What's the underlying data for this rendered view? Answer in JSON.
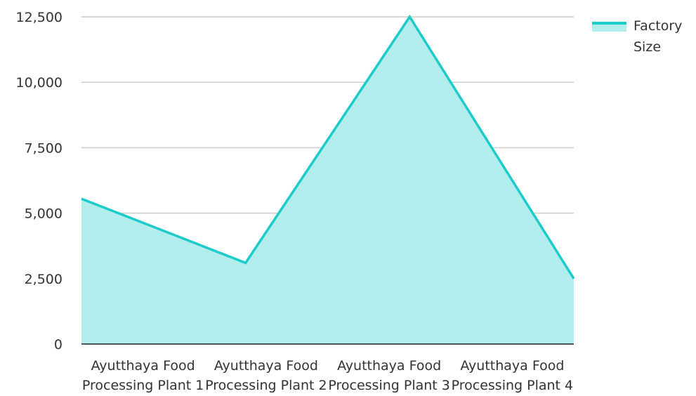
{
  "chart_data": {
    "type": "area",
    "categories": [
      [
        "Ayutthaya Food",
        "Processing Plant 1"
      ],
      [
        "Ayutthaya Food",
        "Processing Plant 2"
      ],
      [
        "Ayutthaya Food",
        "Processing Plant 3"
      ],
      [
        "Ayutthaya Food",
        "Processing Plant 4"
      ]
    ],
    "series": [
      {
        "name": "Factory Size",
        "values": [
          5550,
          3100,
          12500,
          2500
        ]
      }
    ],
    "yticks": [
      "0",
      "2,500",
      "5,000",
      "7,500",
      "10,000",
      "12,500"
    ],
    "ylim": [
      0,
      12500
    ],
    "grid": true,
    "legend_position": "top-right",
    "colors": {
      "line": "#1ecbcb",
      "fill": "#b2eeee",
      "grid": "#cccccc",
      "axis": "#222222"
    }
  }
}
